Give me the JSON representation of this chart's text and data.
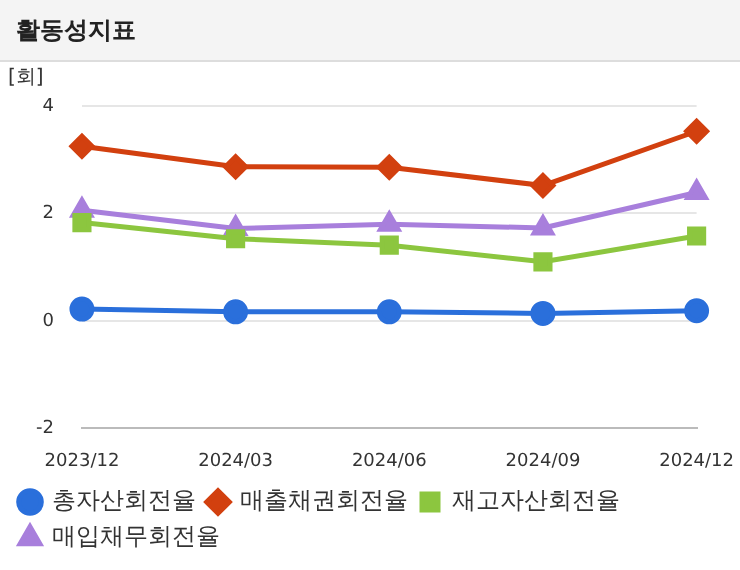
{
  "chart_data": {
    "type": "line",
    "title": "활동성지표",
    "ylabel": "[회]",
    "categories": [
      "2023/12",
      "2024/03",
      "2024/06",
      "2024/09",
      "2024/12"
    ],
    "series": [
      {
        "name": "총자산회전율",
        "color": "#2a6fdb",
        "marker": "circle",
        "values": [
          0.22,
          0.17,
          0.17,
          0.14,
          0.19
        ]
      },
      {
        "name": "매출채권회전율",
        "color": "#d2400f",
        "marker": "diamond",
        "values": [
          3.25,
          2.87,
          2.86,
          2.52,
          3.53
        ]
      },
      {
        "name": "재고자산회전율",
        "color": "#8cc63f",
        "marker": "square",
        "values": [
          1.83,
          1.53,
          1.41,
          1.1,
          1.58
        ]
      },
      {
        "name": "매입채무회전율",
        "color": "#a87fdc",
        "marker": "triangle",
        "values": [
          2.06,
          1.72,
          1.8,
          1.73,
          2.39
        ]
      }
    ],
    "ylim": [
      -2,
      4
    ],
    "yticks": [
      -2,
      0,
      2,
      4
    ],
    "grid": "y",
    "legend": "bottom"
  }
}
